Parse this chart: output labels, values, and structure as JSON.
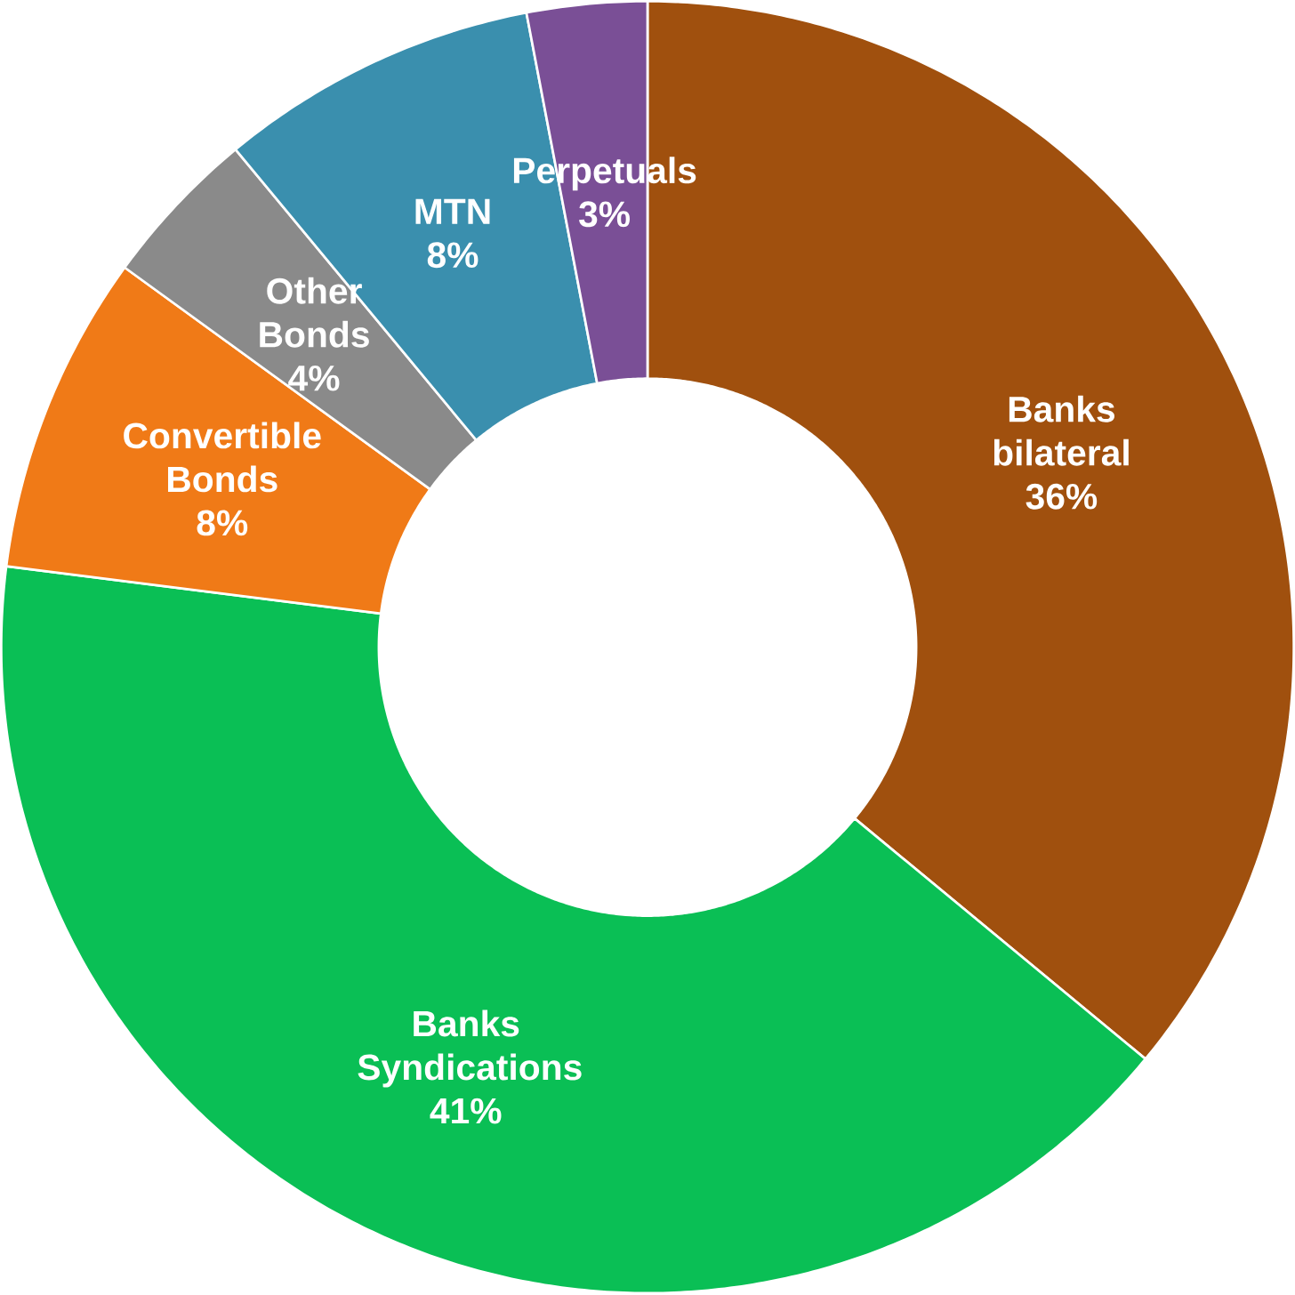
{
  "chart_data": {
    "type": "donut",
    "categories": [
      "Banks bilateral",
      "Banks Syndications",
      "Convertible Bonds",
      "Other Bonds",
      "MTN",
      "Perpetuals"
    ],
    "values": [
      36,
      41,
      8,
      4,
      8,
      3
    ],
    "value_labels": [
      "36%",
      "41%",
      "8%",
      "4%",
      "8%",
      "3%"
    ],
    "colors": [
      "#a0500e",
      "#0abf55",
      "#f07a17",
      "#8a8a8a",
      "#3a8fae",
      "#7a4f96"
    ]
  }
}
